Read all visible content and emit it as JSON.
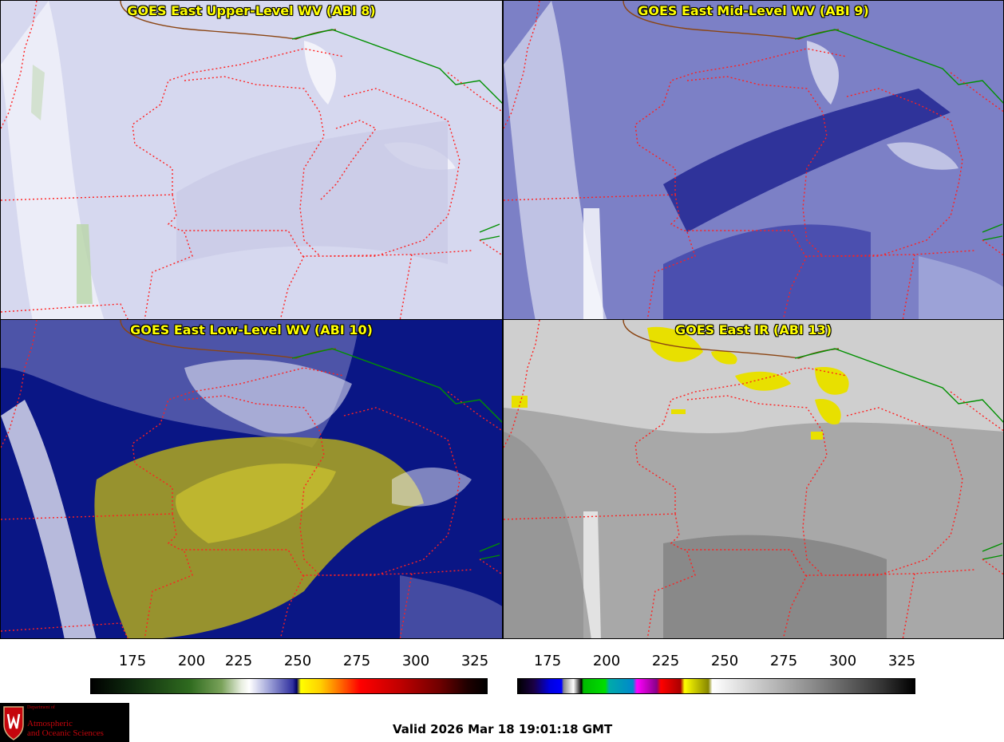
{
  "panels": [
    {
      "id": "p1",
      "title": "GOES East Upper-Level WV (ABI 8)",
      "base": "#d6d8ef",
      "feature": "#c7c9e6",
      "bright": "#ffffff",
      "accent": "#b9d6a8"
    },
    {
      "id": "p2",
      "title": "GOES East Mid-Level WV (ABI 9)",
      "base": "#7c80c6",
      "feature": "#1c1f8f",
      "bright": "#eceef8",
      "accent": "#aab0de"
    },
    {
      "id": "p3",
      "title": "GOES East Low-Level WV (ABI 10)",
      "base": "#0a1685",
      "feature": "#b0a81e",
      "bright": "#f2f2fa",
      "accent": "#6a6fb6"
    },
    {
      "id": "p4",
      "title": "GOES East IR (ABI 13)",
      "base": "#a8a8a8",
      "feature": "#7c7c7c",
      "bright": "#f0f0f0",
      "accent": "#e8e000"
    }
  ],
  "colorbars": {
    "left": {
      "ticks": [
        "175",
        "200",
        "225",
        "250",
        "275",
        "300",
        "325"
      ]
    },
    "right": {
      "ticks": [
        "175",
        "200",
        "225",
        "250",
        "275",
        "300",
        "325"
      ]
    }
  },
  "logo": {
    "dept": "Department of",
    "line1": "Atmospheric",
    "line2": "and Oceanic Sciences"
  },
  "valid_time": "Valid 2026 Mar 18 19:01:18 GMT",
  "colors": {
    "state_border": "#ff2020",
    "country_border": "#009000",
    "coast": "#8b4513",
    "title": "#ffff00"
  }
}
